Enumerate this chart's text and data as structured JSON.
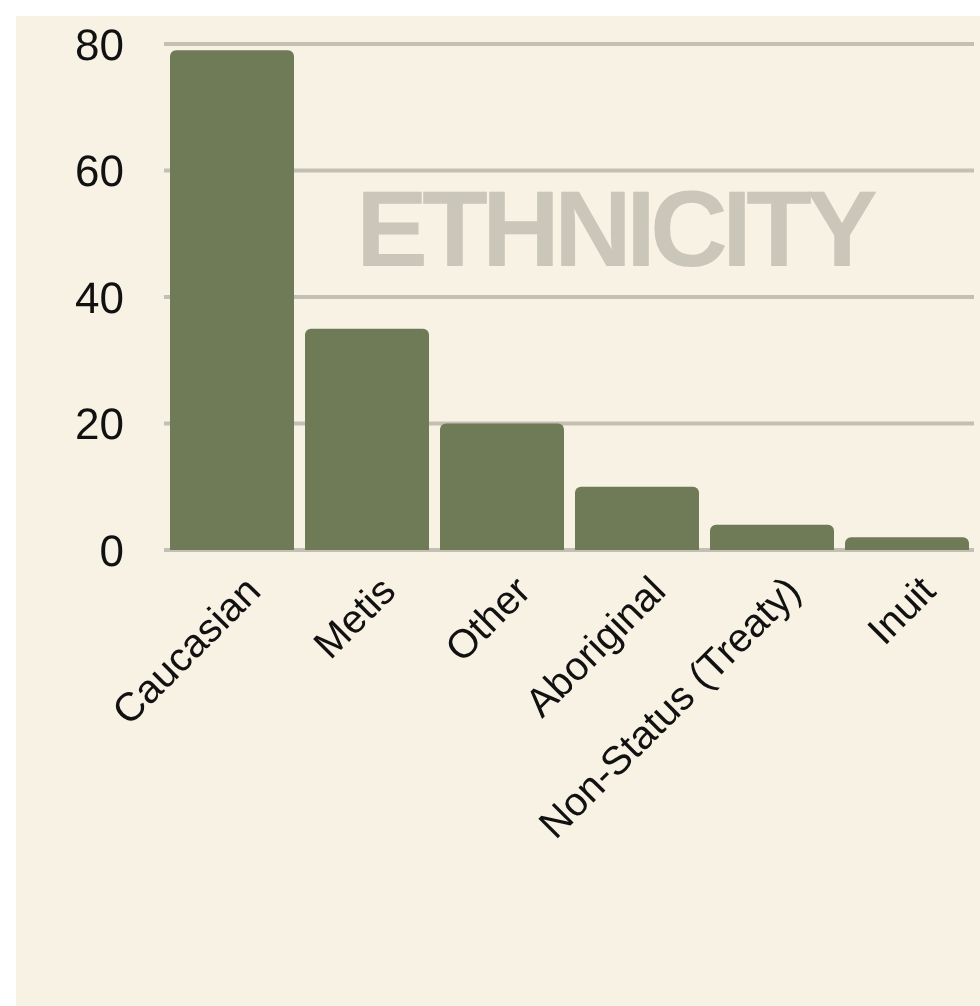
{
  "chart_data": {
    "type": "bar",
    "title": "ETHNICITY",
    "categories": [
      "Caucasian",
      "Metis",
      "Other",
      "Aboriginal",
      "Non-Status (Treaty)",
      "Inuit"
    ],
    "values": [
      79,
      35,
      20,
      10,
      4,
      2
    ],
    "color": "#6e7b56",
    "ylim": [
      0,
      80
    ],
    "yticks": [
      0,
      20,
      40,
      60,
      80
    ],
    "grid": "y",
    "legend": false
  }
}
